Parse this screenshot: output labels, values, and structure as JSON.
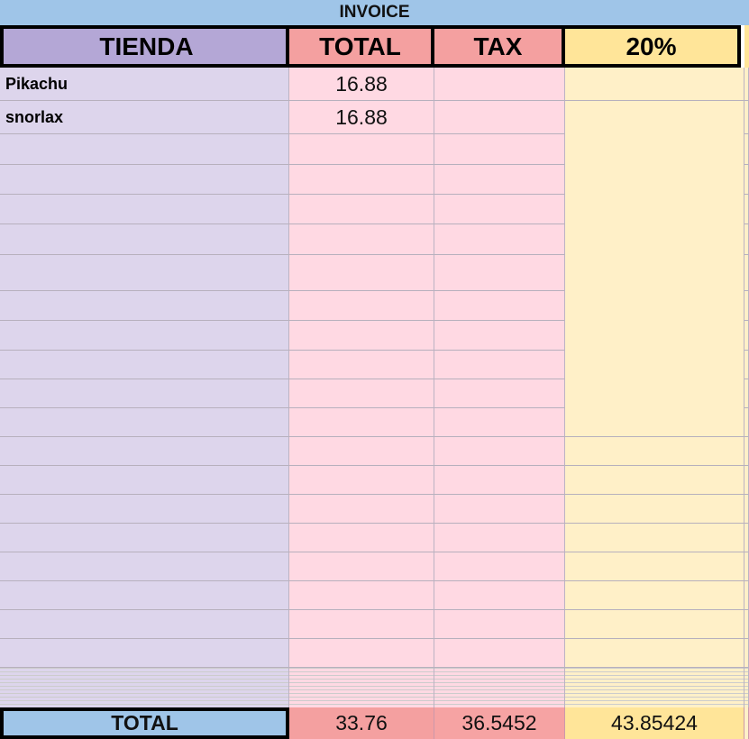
{
  "title": "INVOICE",
  "table": {
    "header": [
      "TIENDA",
      "TOTAL",
      "TAX",
      "20%"
    ],
    "rows": [
      [
        "Pikachu",
        16.88
      ],
      [
        "snorlax",
        16.88
      ]
    ],
    "footer": [
      "TOTAL",
      33.76,
      36.5452,
      43.85424
    ]
  }
}
